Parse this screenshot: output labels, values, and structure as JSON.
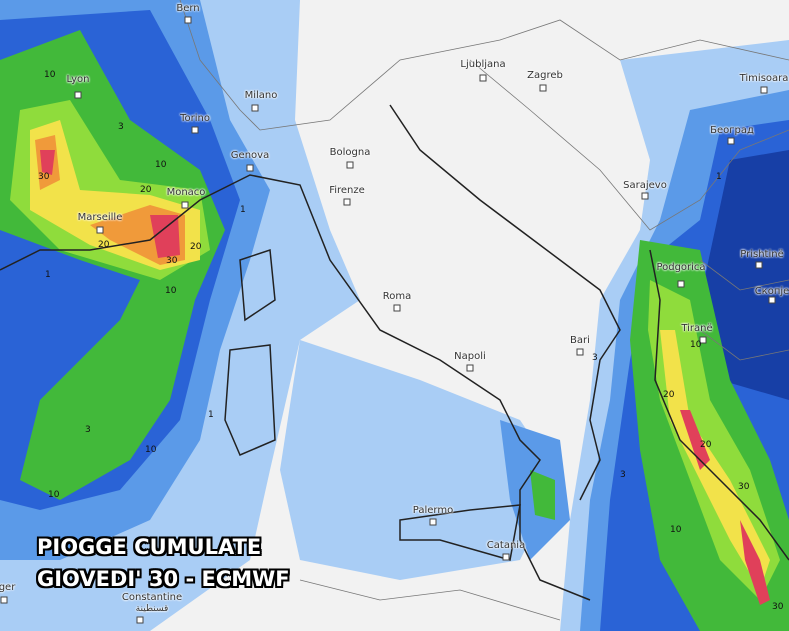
{
  "title": {
    "line1": "PIOGGE CUMULATE",
    "line2": "GIOVEDI' 30  - ECMWF"
  },
  "colors": {
    "land": "#f2f2f2",
    "light_blue": "#a9cdf5",
    "mid_blue": "#5b9ae8",
    "blue": "#2a63d6",
    "dark_blue": "#173fa6",
    "green": "#42b93a",
    "light_green": "#8fdc3c",
    "yellow": "#f2e24a",
    "orange": "#f09a3a",
    "red": "#e0405a"
  },
  "cities": [
    {
      "name": "Bern"
    },
    {
      "name": "Lyon"
    },
    {
      "name": "Milano"
    },
    {
      "name": "Torino"
    },
    {
      "name": "Genova"
    },
    {
      "name": "Monaco"
    },
    {
      "name": "Marseille"
    },
    {
      "name": "Bologna"
    },
    {
      "name": "Firenze"
    },
    {
      "name": "Roma"
    },
    {
      "name": "Napoli"
    },
    {
      "name": "Bari"
    },
    {
      "name": "Palermo"
    },
    {
      "name": "Catania"
    },
    {
      "name": "Ljubljana"
    },
    {
      "name": "Zagreb"
    },
    {
      "name": "Sarajevo"
    },
    {
      "name": "Podgorica"
    },
    {
      "name": "Tiranë"
    },
    {
      "name": "Prishtinë"
    },
    {
      "name": "Скопје"
    },
    {
      "name": "Београд"
    },
    {
      "name": "Timisoara"
    },
    {
      "name": "Constantine"
    },
    {
      "name": "قسنطينة"
    },
    {
      "name": "ger"
    }
  ],
  "contour_labels": [
    "10",
    "30",
    "20",
    "10",
    "20",
    "30",
    "20",
    "10",
    "3",
    "1",
    "1",
    "3",
    "10",
    "1",
    "10",
    "3",
    "20",
    "10",
    "20",
    "30",
    "30",
    "10",
    "1",
    "3"
  ]
}
